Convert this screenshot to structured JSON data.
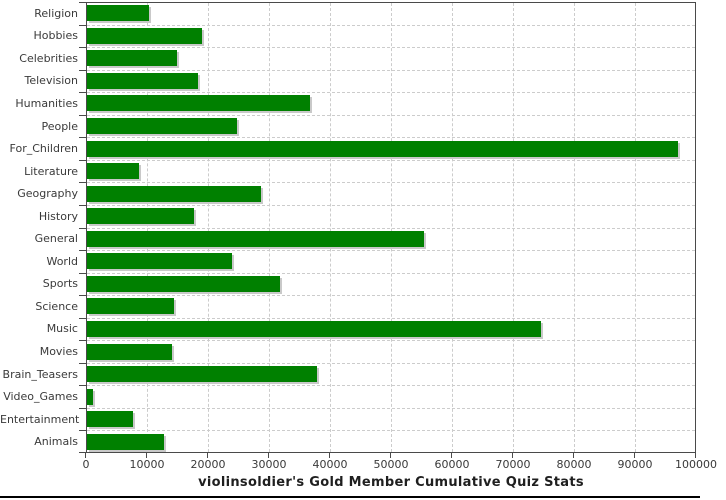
{
  "chart_data": {
    "type": "bar",
    "orientation": "horizontal",
    "title": "violinsoldier's Gold Member Cumulative Quiz Stats",
    "categories": [
      "Religion",
      "Hobbies",
      "Celebrities",
      "Television",
      "Humanities",
      "People",
      "For_Children",
      "Literature",
      "Geography",
      "History",
      "General",
      "World",
      "Sports",
      "Science",
      "Music",
      "Movies",
      "Brain_Teasers",
      "Video_Games",
      "Entertainment",
      "Animals"
    ],
    "values": [
      10100,
      18900,
      14800,
      18200,
      36500,
      24600,
      96900,
      8500,
      28500,
      17600,
      55200,
      23700,
      31600,
      14200,
      74500,
      13900,
      37700,
      1000,
      7600,
      12600
    ],
    "xlabel": "",
    "ylabel": "",
    "xlim": [
      0,
      100000
    ],
    "x_ticks": [
      0,
      10000,
      20000,
      30000,
      40000,
      50000,
      60000,
      70000,
      80000,
      90000,
      100000
    ],
    "x_tick_labels": [
      "0",
      "10000",
      "20000",
      "30000",
      "40000",
      "50000",
      "60000",
      "70000",
      "80000",
      "90000",
      "100000"
    ],
    "legend_position": "none",
    "grid": "dashed-both",
    "colors": {
      "bar": "#008000",
      "bar_shadow": "#c9c9c9",
      "grid": "#cccccc",
      "plot_border": "#4a4a4a",
      "tick_label": "#3a3a3a",
      "title": "#1f1f1f",
      "background": "#ffffff"
    }
  }
}
